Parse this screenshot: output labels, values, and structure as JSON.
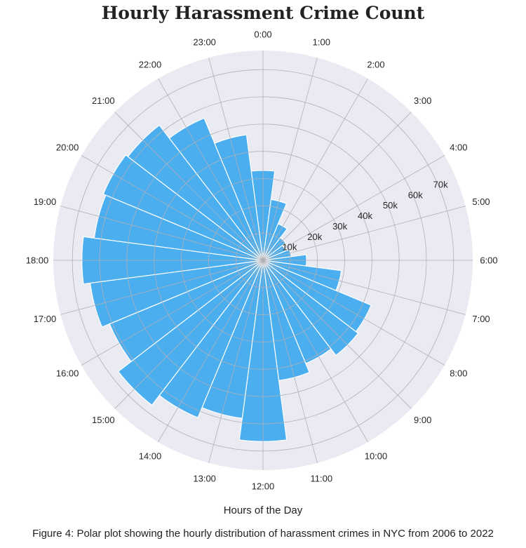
{
  "chart_data": {
    "type": "polar-bar",
    "title": "Hourly Harassment Crime Count",
    "xlabel": "Hours of the Day",
    "categories": [
      "0:00",
      "1:00",
      "2:00",
      "3:00",
      "4:00",
      "5:00",
      "6:00",
      "7:00",
      "8:00",
      "9:00",
      "10:00",
      "11:00",
      "12:00",
      "13:00",
      "14:00",
      "15:00",
      "16:00",
      "17:00",
      "18:00",
      "19:00",
      "20:00",
      "21:00",
      "22:00",
      "23:00"
    ],
    "values": [
      33000,
      22500,
      14500,
      10500,
      9000,
      10500,
      16000,
      29000,
      43000,
      44000,
      41000,
      44500,
      66500,
      58500,
      62500,
      67000,
      61000,
      64000,
      66500,
      62500,
      63500,
      62500,
      56500,
      46500
    ],
    "radial_ticks": [
      "10k",
      "20k",
      "30k",
      "40k",
      "50k",
      "60k",
      "70k"
    ],
    "radial_tick_values": [
      10000,
      20000,
      30000,
      40000,
      50000,
      60000,
      70000
    ],
    "rmax": 77000,
    "grid": true,
    "bar_color": "#4aaeef",
    "background_color": "#eaeaf2",
    "grid_color": "#b0b0b8"
  },
  "caption": "Figure 4: Polar plot showing the hourly distribution of harassment crimes in NYC from 2006 to 2022"
}
